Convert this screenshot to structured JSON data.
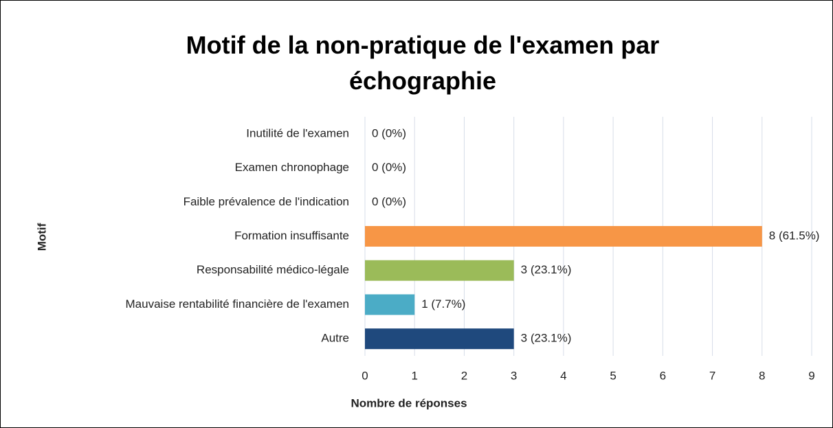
{
  "chart_data": {
    "type": "barh",
    "title": "Motif de la non-pratique de l'examen par échographie",
    "xlabel": "Nombre de réponses",
    "ylabel": "Motif",
    "categories": [
      "Inutilité de l'examen",
      "Examen chronophage",
      "Faible prévalence de l'indication",
      "Formation insuffisante",
      "Responsabilité médico-légale",
      "Mauvaise rentabilité financière de l'examen",
      "Autre"
    ],
    "values": [
      0,
      0,
      0,
      8,
      3,
      1,
      3
    ],
    "value_labels": [
      "0 (0%)",
      "0 (0%)",
      "0 (0%)",
      "8 (61.5%)",
      "3 (23.1%)",
      "1 (7.7%)",
      "3 (23.1%)"
    ],
    "colors": [
      "#f79646",
      "#f79646",
      "#f79646",
      "#f79646",
      "#9bbb59",
      "#4bacc6",
      "#1f497d"
    ],
    "xlim": [
      0,
      9
    ],
    "xticks": [
      0,
      1,
      2,
      3,
      4,
      5,
      6,
      7,
      8,
      9
    ],
    "grid": true
  }
}
